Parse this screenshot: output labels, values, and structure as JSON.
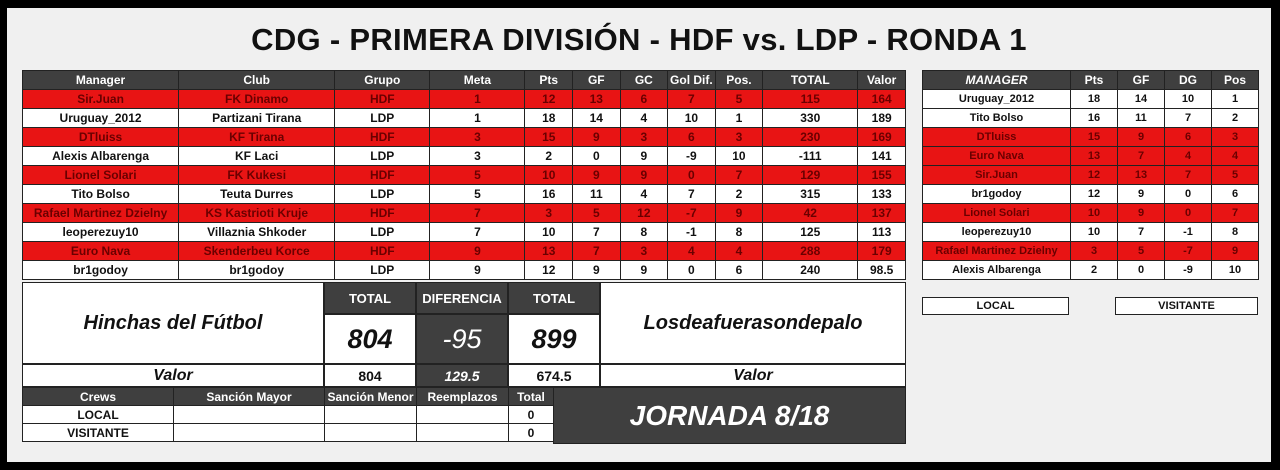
{
  "title": "CDG - PRIMERA DIVISIÓN - HDF vs. LDP - RONDA 1",
  "colors": {
    "red_row": "#e81414",
    "header": "#3f3f3f",
    "background": "#f0f0f0"
  },
  "main_table": {
    "headers": [
      "Manager",
      "Club",
      "Grupo",
      "Meta",
      "Pts",
      "GF",
      "GC",
      "Gol Dif.",
      "Pos.",
      "TOTAL",
      "Valor"
    ],
    "rows": [
      {
        "style": "red",
        "cells": [
          "Sir.Juan",
          "FK Dinamo",
          "HDF",
          "1",
          "12",
          "13",
          "6",
          "7",
          "5",
          "115",
          "164"
        ]
      },
      {
        "style": "white",
        "cells": [
          "Uruguay_2012",
          "Partizani Tirana",
          "LDP",
          "1",
          "18",
          "14",
          "4",
          "10",
          "1",
          "330",
          "189"
        ]
      },
      {
        "style": "red",
        "cells": [
          "DTluiss",
          "KF Tirana",
          "HDF",
          "3",
          "15",
          "9",
          "3",
          "6",
          "3",
          "230",
          "169"
        ]
      },
      {
        "style": "white",
        "cells": [
          "Alexis Albarenga",
          "KF Laci",
          "LDP",
          "3",
          "2",
          "0",
          "9",
          "-9",
          "10",
          "-111",
          "141"
        ]
      },
      {
        "style": "red",
        "cells": [
          "Lionel Solari",
          "FK Kukesi",
          "HDF",
          "5",
          "10",
          "9",
          "9",
          "0",
          "7",
          "129",
          "155"
        ]
      },
      {
        "style": "white",
        "cells": [
          "Tito Bolso",
          "Teuta Durres",
          "LDP",
          "5",
          "16",
          "11",
          "4",
          "7",
          "2",
          "315",
          "133"
        ]
      },
      {
        "style": "red",
        "cells": [
          "Rafael Martinez Dzielny",
          "KS Kastrioti Kruje",
          "HDF",
          "7",
          "3",
          "5",
          "12",
          "-7",
          "9",
          "42",
          "137"
        ]
      },
      {
        "style": "white",
        "cells": [
          "leoperezuy10",
          "Villaznia Shkoder",
          "LDP",
          "7",
          "10",
          "7",
          "8",
          "-1",
          "8",
          "125",
          "113"
        ]
      },
      {
        "style": "red",
        "cells": [
          "Euro Nava",
          "Skenderbeu Korce",
          "HDF",
          "9",
          "13",
          "7",
          "3",
          "4",
          "4",
          "288",
          "179"
        ]
      },
      {
        "style": "white",
        "cells": [
          "br1godoy",
          "br1godoy",
          "LDP",
          "9",
          "12",
          "9",
          "9",
          "0",
          "6",
          "240",
          "98.5"
        ]
      }
    ]
  },
  "summary": {
    "team_left": "Hinchas del Fútbol",
    "team_right": "Losdeafuerasondepalo",
    "total_label": "TOTAL",
    "diff_label": "DIFERENCIA",
    "total_left": "804",
    "diff": "-95",
    "total_right": "899",
    "valor_label": "Valor",
    "valor_left": "804",
    "valor_diff": "129.5",
    "valor_right": "674.5"
  },
  "crews": {
    "headers": [
      "Crews",
      "Sanción Mayor",
      "Sanción Menor",
      "Reemplazos",
      "Total"
    ],
    "rows": [
      [
        "LOCAL",
        "",
        "",
        "",
        "0"
      ],
      [
        "VISITANTE",
        "",
        "",
        "",
        "0"
      ]
    ]
  },
  "jornada": "JORNADA 8/18",
  "side_table": {
    "headers": [
      "MANAGER",
      "Pts",
      "GF",
      "DG",
      "Pos"
    ],
    "rows": [
      {
        "style": "white",
        "cells": [
          "Uruguay_2012",
          "18",
          "14",
          "10",
          "1"
        ]
      },
      {
        "style": "white",
        "cells": [
          "Tito Bolso",
          "16",
          "11",
          "7",
          "2"
        ]
      },
      {
        "style": "red",
        "cells": [
          "DTluiss",
          "15",
          "9",
          "6",
          "3"
        ]
      },
      {
        "style": "red",
        "cells": [
          "Euro Nava",
          "13",
          "7",
          "4",
          "4"
        ]
      },
      {
        "style": "red",
        "cells": [
          "Sir.Juan",
          "12",
          "13",
          "7",
          "5"
        ]
      },
      {
        "style": "white",
        "cells": [
          "br1godoy",
          "12",
          "9",
          "0",
          "6"
        ]
      },
      {
        "style": "red",
        "cells": [
          "Lionel Solari",
          "10",
          "9",
          "0",
          "7"
        ]
      },
      {
        "style": "white",
        "cells": [
          "leoperezuy10",
          "10",
          "7",
          "-1",
          "8"
        ]
      },
      {
        "style": "red",
        "cells": [
          "Rafael Martinez Dzielny",
          "3",
          "5",
          "-7",
          "9"
        ]
      },
      {
        "style": "white",
        "cells": [
          "Alexis Albarenga",
          "2",
          "0",
          "-9",
          "10"
        ]
      }
    ]
  },
  "legend": {
    "local": "LOCAL",
    "visitante": "VISITANTE"
  }
}
